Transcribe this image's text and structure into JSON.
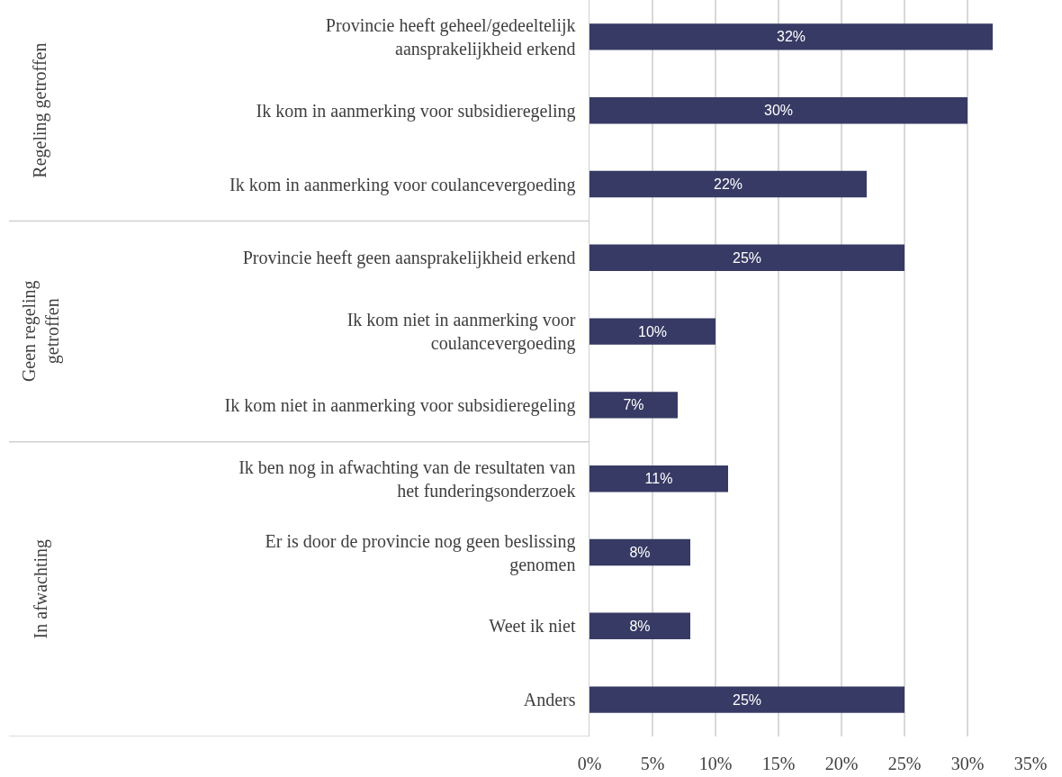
{
  "chart_data": {
    "type": "bar",
    "orientation": "horizontal",
    "categories": [
      "Provincie heeft geheel/gedeeltelijk\naansprakelijkheid erkend",
      "Ik kom in aanmerking voor subsidieregeling",
      "Ik kom in aanmerking voor coulancevergoeding",
      "Provincie heeft geen aansprakelijkheid erkend",
      "Ik kom niet in aanmerking voor\ncoulancevergoeding",
      "Ik kom niet in aanmerking voor subsidieregeling",
      "Ik ben nog in afwachting van de resultaten van\nhet funderingsonderzoek",
      "Er is door de provincie nog geen beslissing\ngenomen",
      "Weet ik niet",
      "Anders"
    ],
    "values": [
      32,
      30,
      22,
      25,
      10,
      7,
      11,
      8,
      8,
      25
    ],
    "value_labels": [
      "32%",
      "30%",
      "22%",
      "25%",
      "10%",
      "7%",
      "11%",
      "8%",
      "8%",
      "25%"
    ],
    "color": "#363a64",
    "xlim": [
      0,
      35
    ],
    "xticks": [
      {
        "value": 0,
        "label": "0%"
      },
      {
        "value": 5,
        "label": "5%"
      },
      {
        "value": 10,
        "label": "10%"
      },
      {
        "value": 15,
        "label": "15%"
      },
      {
        "value": 20,
        "label": "20%"
      },
      {
        "value": 25,
        "label": "25%"
      },
      {
        "value": 30,
        "label": "30%"
      },
      {
        "value": 35,
        "label": "35%"
      }
    ],
    "grid": "x",
    "annotations": [
      "Regeling getroffen",
      "Geen regeling\ngetroffen",
      "In afwachting"
    ]
  }
}
